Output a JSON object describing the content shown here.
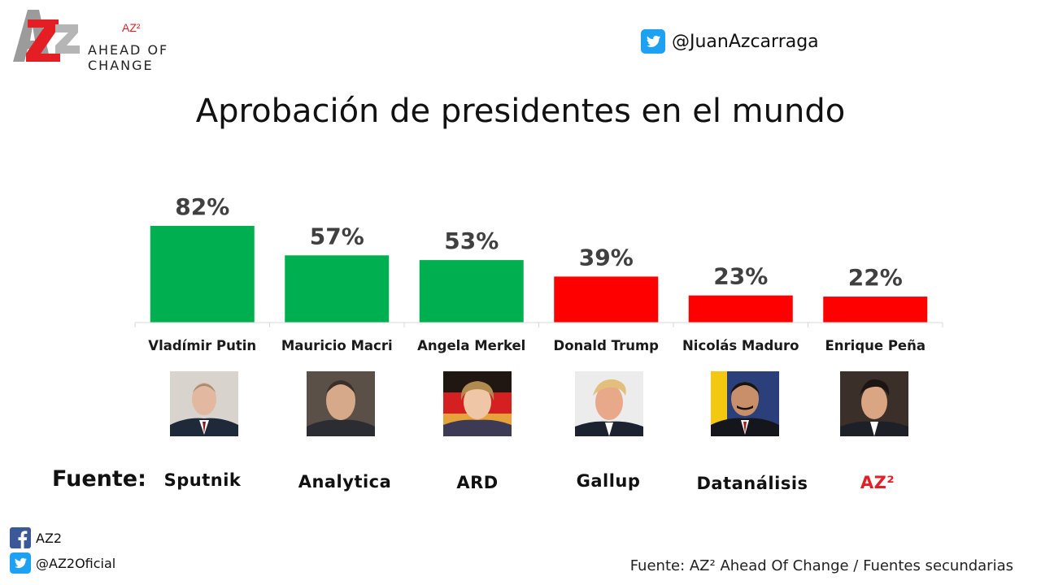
{
  "logo": {
    "sup": "AZ²",
    "line1": "AHEAD OF",
    "line2": "CHANGE"
  },
  "twitter_handle": "@JuanAzcarraga",
  "chart_data": {
    "type": "bar",
    "title": "Aprobación de presidentes en el mundo",
    "categories": [
      "Vladímir Putin",
      "Mauricio Macri",
      "Angela Merkel",
      "Donald Trump",
      "Nicolás Maduro",
      "Enrique Peña"
    ],
    "values": [
      82,
      57,
      53,
      39,
      23,
      22
    ],
    "value_labels": [
      "82%",
      "57%",
      "53%",
      "39%",
      "23%",
      "22%"
    ],
    "colors": [
      "#00b050",
      "#00b050",
      "#00b050",
      "#ff0000",
      "#ff0000",
      "#ff0000"
    ],
    "xlabel": "",
    "ylabel": "",
    "ylim": [
      0,
      100
    ],
    "grid": false,
    "legend": "none"
  },
  "photos": [
    "putin-photo",
    "macri-photo",
    "merkel-photo",
    "trump-photo",
    "maduro-photo",
    "pena-photo"
  ],
  "sources": {
    "label": "Fuente:",
    "items": [
      "Sputnik",
      "Analytica",
      "ARD",
      "Gallup",
      "Datanálisis",
      "AZ²"
    ]
  },
  "socials": {
    "facebook": "AZ2",
    "twitter": "@AZ2Oficial"
  },
  "footnote": "Fuente: AZ² Ahead Of Change / Fuentes secundarias",
  "colors": {
    "approve": "#00b050",
    "disapprove": "#ff0000",
    "brand_red": "#e31e24"
  }
}
